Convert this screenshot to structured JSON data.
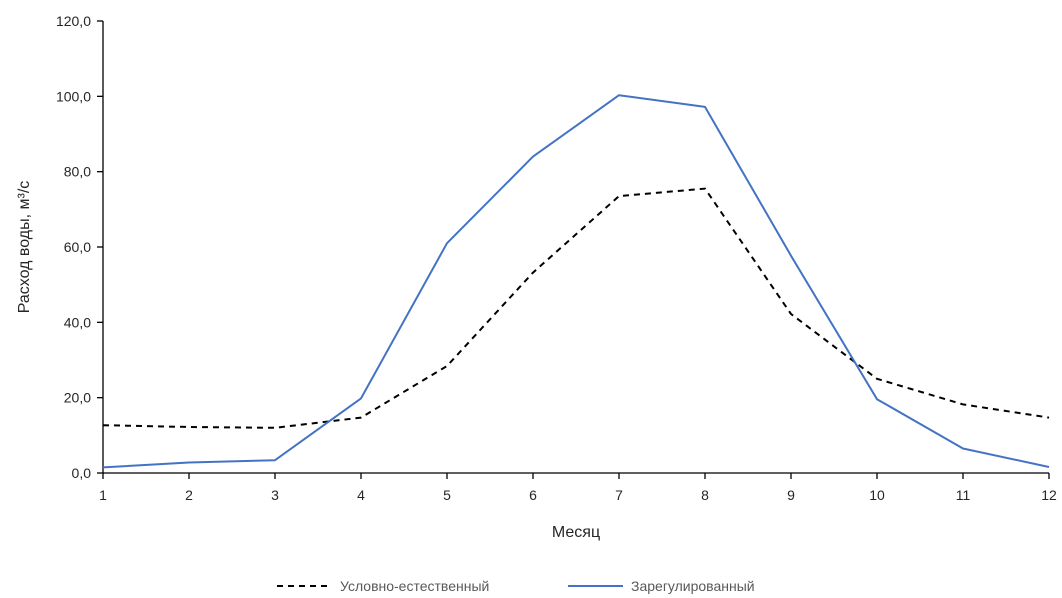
{
  "chart_data": {
    "type": "line",
    "xlabel": "Месяц",
    "ylabel": "Расход воды, м³/с",
    "x": [
      1,
      2,
      3,
      4,
      5,
      6,
      7,
      8,
      9,
      10,
      11,
      12
    ],
    "ylim": [
      0,
      120
    ],
    "yticks": [
      "0,0",
      "20,0",
      "40,0",
      "60,0",
      "80,0",
      "100,0",
      "120,0"
    ],
    "grid": false,
    "legend_position": "bottom",
    "series": [
      {
        "name": "Условно-естественный",
        "style": "dashed",
        "color": "#000000",
        "values": [
          12.7,
          12.2,
          12.0,
          14.7,
          28.4,
          53.2,
          73.5,
          75.5,
          42.2,
          25.0,
          18.2,
          14.7
        ]
      },
      {
        "name": "Зарегулированный",
        "style": "solid",
        "color": "#4472C4",
        "values": [
          1.5,
          2.8,
          3.4,
          19.8,
          61.0,
          84.0,
          100.3,
          97.2,
          57.7,
          19.6,
          6.5,
          1.6
        ]
      }
    ]
  }
}
